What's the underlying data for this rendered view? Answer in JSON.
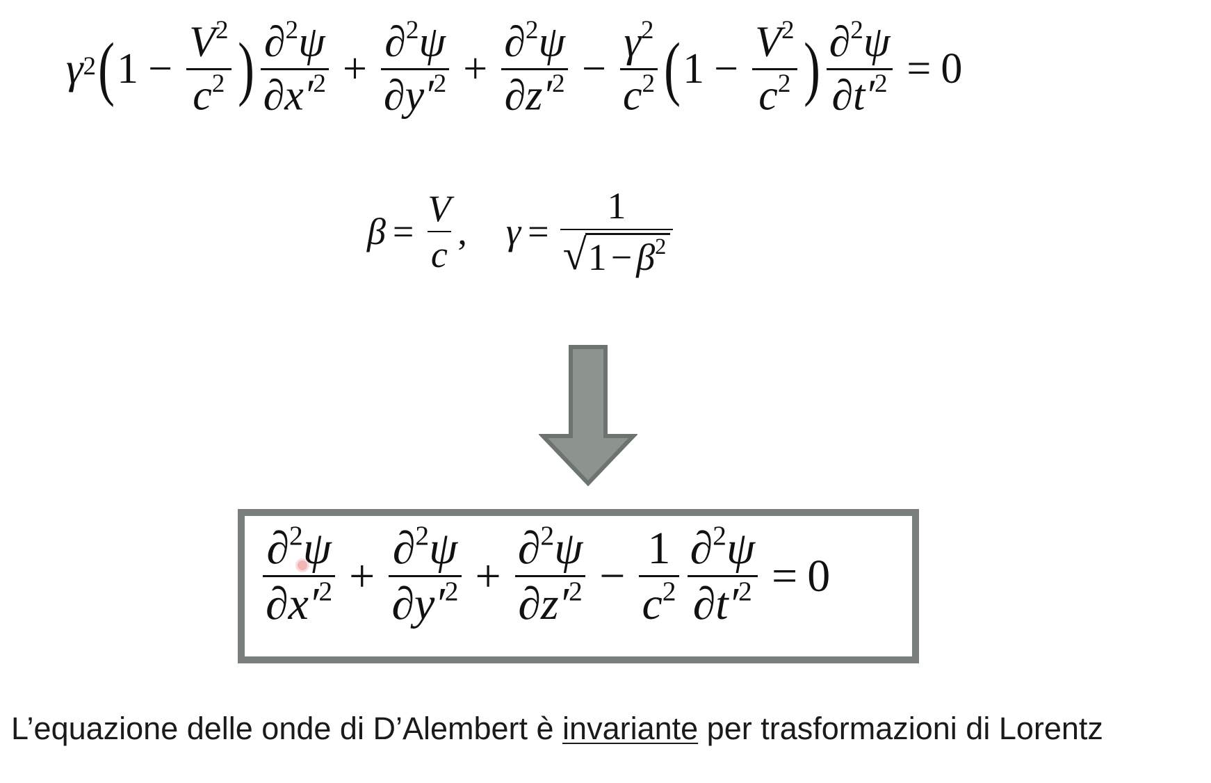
{
  "equation_original": {
    "gamma": "γ",
    "gamma_exp": "2",
    "one": "1",
    "minus": "−",
    "plus": "+",
    "V": "V",
    "V_exp": "2",
    "c": "c",
    "c_exp": "2",
    "partial": "∂",
    "psi": "ψ",
    "x": "x′",
    "y": "y′",
    "z": "z′",
    "t": "t′",
    "sq": "2",
    "equals": "=",
    "zero": "0"
  },
  "definitions": {
    "beta": "β",
    "gamma": "γ",
    "equals": "=",
    "V": "V",
    "c": "c",
    "comma": ",",
    "one": "1",
    "radical": "√",
    "radicand_one": "1",
    "minus": "−",
    "beta_exp": "2"
  },
  "equation_result": {
    "partial": "∂",
    "psi": "ψ",
    "sq": "2",
    "x": "x′",
    "y": "y′",
    "z": "z′",
    "t": "t′",
    "plus": "+",
    "minus": "−",
    "one": "1",
    "c": "c",
    "equals": "=",
    "zero": "0"
  },
  "caption": {
    "before": "L’equazione delle onde di D’Alembert è ",
    "underlined": "invariante",
    "after": " per trasformazioni di Lorentz"
  },
  "colors": {
    "arrow_fill": "#8d938f",
    "arrow_stroke": "#6d736f",
    "box_border": "#7a7f7c"
  }
}
